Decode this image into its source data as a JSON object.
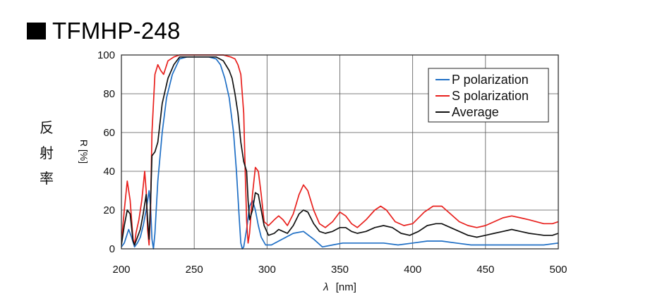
{
  "title": "TFMHP-248",
  "jp_label": [
    "反",
    "射",
    "率"
  ],
  "chart_data": {
    "type": "line",
    "title": "TFMHP-248",
    "xlabel_symbol": "λ",
    "xlabel_unit": "[nm]",
    "ylabel": "R [%]",
    "xlim": [
      200,
      500
    ],
    "ylim": [
      0,
      100
    ],
    "xticks": [
      200,
      250,
      300,
      350,
      400,
      450,
      500
    ],
    "yticks": [
      0,
      20,
      40,
      60,
      80,
      100
    ],
    "grid": true,
    "legend_position": "top-right",
    "series": [
      {
        "name": "P polarization",
        "color": "#1f6fc5",
        "points": [
          [
            200,
            1
          ],
          [
            202,
            3
          ],
          [
            205,
            10
          ],
          [
            207,
            6
          ],
          [
            209,
            1
          ],
          [
            211,
            3
          ],
          [
            213,
            6
          ],
          [
            215,
            12
          ],
          [
            217,
            20
          ],
          [
            219,
            30
          ],
          [
            220,
            22
          ],
          [
            221,
            5
          ],
          [
            222,
            0
          ],
          [
            223,
            8
          ],
          [
            225,
            35
          ],
          [
            228,
            60
          ],
          [
            231,
            78
          ],
          [
            235,
            90
          ],
          [
            240,
            98
          ],
          [
            245,
            99
          ],
          [
            250,
            99
          ],
          [
            255,
            99
          ],
          [
            260,
            99
          ],
          [
            265,
            98
          ],
          [
            268,
            95
          ],
          [
            271,
            88
          ],
          [
            274,
            78
          ],
          [
            277,
            60
          ],
          [
            279,
            40
          ],
          [
            281,
            15
          ],
          [
            282,
            3
          ],
          [
            283,
            0
          ],
          [
            284,
            1
          ],
          [
            286,
            10
          ],
          [
            288,
            22
          ],
          [
            290,
            25
          ],
          [
            292,
            20
          ],
          [
            294,
            12
          ],
          [
            296,
            6
          ],
          [
            299,
            2
          ],
          [
            303,
            2
          ],
          [
            308,
            4
          ],
          [
            313,
            6
          ],
          [
            318,
            8
          ],
          [
            325,
            9
          ],
          [
            332,
            5
          ],
          [
            338,
            1
          ],
          [
            345,
            2
          ],
          [
            352,
            3
          ],
          [
            360,
            3
          ],
          [
            370,
            3
          ],
          [
            380,
            3
          ],
          [
            390,
            2
          ],
          [
            400,
            3
          ],
          [
            410,
            4
          ],
          [
            420,
            4
          ],
          [
            430,
            3
          ],
          [
            440,
            2
          ],
          [
            450,
            2
          ],
          [
            460,
            2
          ],
          [
            470,
            2
          ],
          [
            480,
            2
          ],
          [
            490,
            2
          ],
          [
            500,
            3
          ]
        ]
      },
      {
        "name": "S polarization",
        "color": "#e8201d",
        "points": [
          [
            200,
            3
          ],
          [
            202,
            20
          ],
          [
            204,
            35
          ],
          [
            206,
            25
          ],
          [
            208,
            5
          ],
          [
            209,
            2
          ],
          [
            210,
            8
          ],
          [
            212,
            15
          ],
          [
            214,
            25
          ],
          [
            216,
            40
          ],
          [
            217,
            30
          ],
          [
            218,
            10
          ],
          [
            219,
            2
          ],
          [
            220,
            20
          ],
          [
            221,
            60
          ],
          [
            223,
            90
          ],
          [
            225,
            95
          ],
          [
            227,
            92
          ],
          [
            229,
            90
          ],
          [
            232,
            97
          ],
          [
            236,
            99
          ],
          [
            240,
            100
          ],
          [
            250,
            100
          ],
          [
            260,
            100
          ],
          [
            270,
            100
          ],
          [
            275,
            99
          ],
          [
            278,
            98
          ],
          [
            280,
            95
          ],
          [
            282,
            90
          ],
          [
            284,
            70
          ],
          [
            285,
            40
          ],
          [
            286,
            15
          ],
          [
            287,
            3
          ],
          [
            288,
            8
          ],
          [
            290,
            28
          ],
          [
            292,
            42
          ],
          [
            294,
            40
          ],
          [
            296,
            28
          ],
          [
            298,
            14
          ],
          [
            301,
            12
          ],
          [
            305,
            15
          ],
          [
            308,
            17
          ],
          [
            311,
            15
          ],
          [
            314,
            12
          ],
          [
            318,
            18
          ],
          [
            322,
            28
          ],
          [
            325,
            33
          ],
          [
            328,
            30
          ],
          [
            332,
            20
          ],
          [
            336,
            13
          ],
          [
            340,
            11
          ],
          [
            345,
            14
          ],
          [
            350,
            19
          ],
          [
            354,
            17
          ],
          [
            358,
            13
          ],
          [
            362,
            11
          ],
          [
            368,
            15
          ],
          [
            374,
            20
          ],
          [
            378,
            22
          ],
          [
            382,
            20
          ],
          [
            388,
            14
          ],
          [
            394,
            12
          ],
          [
            400,
            13
          ],
          [
            408,
            19
          ],
          [
            414,
            22
          ],
          [
            420,
            22
          ],
          [
            426,
            18
          ],
          [
            432,
            14
          ],
          [
            438,
            12
          ],
          [
            444,
            11
          ],
          [
            450,
            12
          ],
          [
            456,
            14
          ],
          [
            462,
            16
          ],
          [
            468,
            17
          ],
          [
            474,
            16
          ],
          [
            480,
            15
          ],
          [
            490,
            13
          ],
          [
            496,
            13
          ],
          [
            500,
            14
          ]
        ]
      },
      {
        "name": "Average",
        "color": "#111111",
        "points": [
          [
            200,
            2
          ],
          [
            202,
            12
          ],
          [
            204,
            20
          ],
          [
            206,
            18
          ],
          [
            208,
            4
          ],
          [
            209,
            2
          ],
          [
            211,
            6
          ],
          [
            213,
            10
          ],
          [
            215,
            18
          ],
          [
            217,
            28
          ],
          [
            218,
            15
          ],
          [
            219,
            5
          ],
          [
            220,
            24
          ],
          [
            221,
            48
          ],
          [
            223,
            50
          ],
          [
            225,
            55
          ],
          [
            228,
            75
          ],
          [
            232,
            88
          ],
          [
            236,
            95
          ],
          [
            240,
            99
          ],
          [
            245,
            99
          ],
          [
            250,
            99
          ],
          [
            255,
            99
          ],
          [
            260,
            99
          ],
          [
            265,
            99
          ],
          [
            270,
            97
          ],
          [
            274,
            92
          ],
          [
            276,
            88
          ],
          [
            278,
            80
          ],
          [
            280,
            70
          ],
          [
            282,
            55
          ],
          [
            284,
            45
          ],
          [
            286,
            40
          ],
          [
            287,
            25
          ],
          [
            288,
            15
          ],
          [
            290,
            20
          ],
          [
            292,
            29
          ],
          [
            294,
            28
          ],
          [
            296,
            20
          ],
          [
            298,
            12
          ],
          [
            301,
            7
          ],
          [
            305,
            8
          ],
          [
            308,
            10
          ],
          [
            311,
            9
          ],
          [
            314,
            8
          ],
          [
            318,
            12
          ],
          [
            322,
            18
          ],
          [
            325,
            20
          ],
          [
            328,
            19
          ],
          [
            332,
            13
          ],
          [
            336,
            9
          ],
          [
            340,
            8
          ],
          [
            345,
            9
          ],
          [
            350,
            11
          ],
          [
            354,
            11
          ],
          [
            358,
            9
          ],
          [
            362,
            8
          ],
          [
            368,
            9
          ],
          [
            374,
            11
          ],
          [
            380,
            12
          ],
          [
            386,
            11
          ],
          [
            392,
            8
          ],
          [
            398,
            7
          ],
          [
            404,
            9
          ],
          [
            410,
            12
          ],
          [
            416,
            13
          ],
          [
            420,
            13
          ],
          [
            426,
            11
          ],
          [
            432,
            9
          ],
          [
            438,
            7
          ],
          [
            444,
            6
          ],
          [
            450,
            7
          ],
          [
            456,
            8
          ],
          [
            462,
            9
          ],
          [
            468,
            10
          ],
          [
            474,
            9
          ],
          [
            480,
            8
          ],
          [
            490,
            7
          ],
          [
            496,
            7
          ],
          [
            500,
            8
          ]
        ]
      }
    ]
  }
}
